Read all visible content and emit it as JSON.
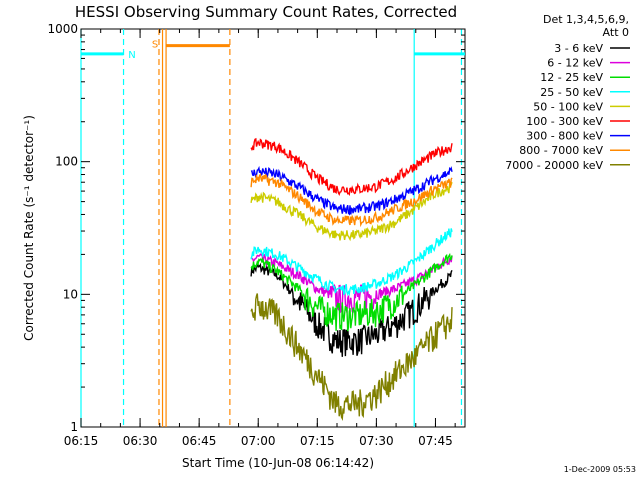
{
  "chart_data": {
    "type": "line",
    "title": "HESSI Observing Summary Count Rates, Corrected",
    "xlabel": "Start Time (10-Jun-08 06:14:42)",
    "ylabel": "Corrected Count Rate (s⁻¹ detector⁻¹)",
    "y_scale": "log",
    "ylim": [
      1,
      1000
    ],
    "xlim_minutes": [
      6.25,
      7.875
    ],
    "x_ticks": [
      {
        "label": "06:15",
        "t": 6.25
      },
      {
        "label": "06:30",
        "t": 6.5
      },
      {
        "label": "06:45",
        "t": 6.75
      },
      {
        "label": "07:00",
        "t": 7.0
      },
      {
        "label": "07:15",
        "t": 7.25
      },
      {
        "label": "07:30",
        "t": 7.5
      },
      {
        "label": "07:45",
        "t": 7.75
      }
    ],
    "y_ticks": [
      {
        "label": "1",
        "v": 1
      },
      {
        "label": "10",
        "v": 10
      },
      {
        "label": "100",
        "v": 100
      },
      {
        "label": "1000",
        "v": 1000
      }
    ],
    "grid": false,
    "legend_position": "right",
    "legend_header": [
      "Det 1,3,4,5,6,9,",
      "Att 0"
    ],
    "series": [
      {
        "name": "3 - 6 keV",
        "color": "#000000",
        "x": [
          6.97,
          7.0,
          7.08,
          7.17,
          7.25,
          7.33,
          7.42,
          7.5,
          7.58,
          7.67,
          7.75,
          7.82
        ],
        "values": [
          15,
          16,
          14,
          9,
          6,
          4.5,
          4.5,
          5,
          6,
          8,
          11,
          14
        ]
      },
      {
        "name": "6 - 12 keV",
        "color": "#dd00dd",
        "x": [
          6.97,
          7.0,
          7.08,
          7.17,
          7.25,
          7.33,
          7.42,
          7.5,
          7.58,
          7.67,
          7.75,
          7.82
        ],
        "values": [
          18,
          19,
          17,
          14,
          11,
          9.5,
          9.5,
          10,
          11,
          13,
          16,
          19
        ]
      },
      {
        "name": "12 - 25 keV",
        "color": "#00dd00",
        "x": [
          6.97,
          7.0,
          7.08,
          7.17,
          7.25,
          7.33,
          7.42,
          7.5,
          7.58,
          7.67,
          7.75,
          7.82
        ],
        "values": [
          16,
          18,
          15,
          11,
          8,
          7,
          7,
          7.5,
          9,
          12,
          16,
          20
        ]
      },
      {
        "name": "25 - 50 keV",
        "color": "#00ffff",
        "x": [
          6.97,
          7.0,
          7.08,
          7.17,
          7.25,
          7.33,
          7.42,
          7.5,
          7.58,
          7.67,
          7.75,
          7.82
        ],
        "values": [
          20,
          22,
          20,
          16,
          13,
          11,
          11,
          12,
          14,
          18,
          24,
          30
        ]
      },
      {
        "name": "50 - 100 keV",
        "color": "#cccc00",
        "x": [
          6.97,
          7.0,
          7.08,
          7.17,
          7.25,
          7.33,
          7.42,
          7.5,
          7.58,
          7.67,
          7.75,
          7.82
        ],
        "values": [
          50,
          55,
          50,
          40,
          32,
          28,
          28,
          30,
          35,
          45,
          58,
          65
        ]
      },
      {
        "name": "100 - 300 keV",
        "color": "#ff0000",
        "x": [
          6.97,
          7.0,
          7.08,
          7.17,
          7.25,
          7.33,
          7.42,
          7.5,
          7.58,
          7.67,
          7.75,
          7.82
        ],
        "values": [
          130,
          140,
          130,
          100,
          75,
          62,
          62,
          65,
          75,
          95,
          115,
          130
        ]
      },
      {
        "name": "300 - 800 keV",
        "color": "#0000ff",
        "x": [
          6.97,
          7.0,
          7.08,
          7.17,
          7.25,
          7.33,
          7.42,
          7.5,
          7.58,
          7.67,
          7.75,
          7.82
        ],
        "values": [
          80,
          85,
          80,
          65,
          52,
          44,
          44,
          46,
          52,
          62,
          75,
          85
        ]
      },
      {
        "name": "800 - 7000 keV",
        "color": "#ff8800",
        "x": [
          6.97,
          7.0,
          7.08,
          7.17,
          7.25,
          7.33,
          7.42,
          7.5,
          7.58,
          7.67,
          7.75,
          7.82
        ],
        "values": [
          70,
          75,
          70,
          55,
          42,
          36,
          36,
          38,
          44,
          52,
          63,
          70
        ]
      },
      {
        "name": "7000 - 20000 keV",
        "color": "#808000",
        "x": [
          6.97,
          7.0,
          7.08,
          7.17,
          7.25,
          7.33,
          7.42,
          7.5,
          7.58,
          7.67,
          7.75,
          7.82
        ],
        "values": [
          7,
          8.5,
          7,
          4,
          2.5,
          1.5,
          1.5,
          1.8,
          2.5,
          3.5,
          5,
          6.5
        ]
      }
    ],
    "annotations": [
      {
        "type": "hline",
        "color": "#00ffff",
        "t0": 6.25,
        "t1": 6.43,
        "value": 650
      },
      {
        "type": "hline",
        "color": "#00ffff",
        "t0": 7.66,
        "t1": 7.875,
        "value": 650
      },
      {
        "type": "hline",
        "color": "#ff8800",
        "t0": 6.61,
        "t1": 6.88,
        "value": 750
      },
      {
        "type": "text",
        "text": "N",
        "color": "#00ffff",
        "t": 6.45,
        "value": 650
      },
      {
        "type": "text",
        "text": "S",
        "color": "#ff8800",
        "t": 6.55,
        "value": 780
      }
    ],
    "markers": [
      {
        "color": "#00ffff",
        "style": "solid",
        "t": 6.25
      },
      {
        "color": "#00ffff",
        "style": "dashed",
        "t": 6.43
      },
      {
        "color": "#00ffff",
        "style": "solid",
        "t": 7.66
      },
      {
        "color": "#00ffff",
        "style": "dashed",
        "t": 7.86
      },
      {
        "color": "#ff8800",
        "style": "dashed",
        "t": 6.58
      },
      {
        "color": "#ff8800",
        "style": "solid",
        "t": 6.595
      },
      {
        "color": "#ff8800",
        "style": "solid",
        "t": 6.61
      },
      {
        "color": "#ff8800",
        "style": "dashed",
        "t": 6.88
      }
    ]
  },
  "footer_date": "1-Dec-2009 05:53"
}
